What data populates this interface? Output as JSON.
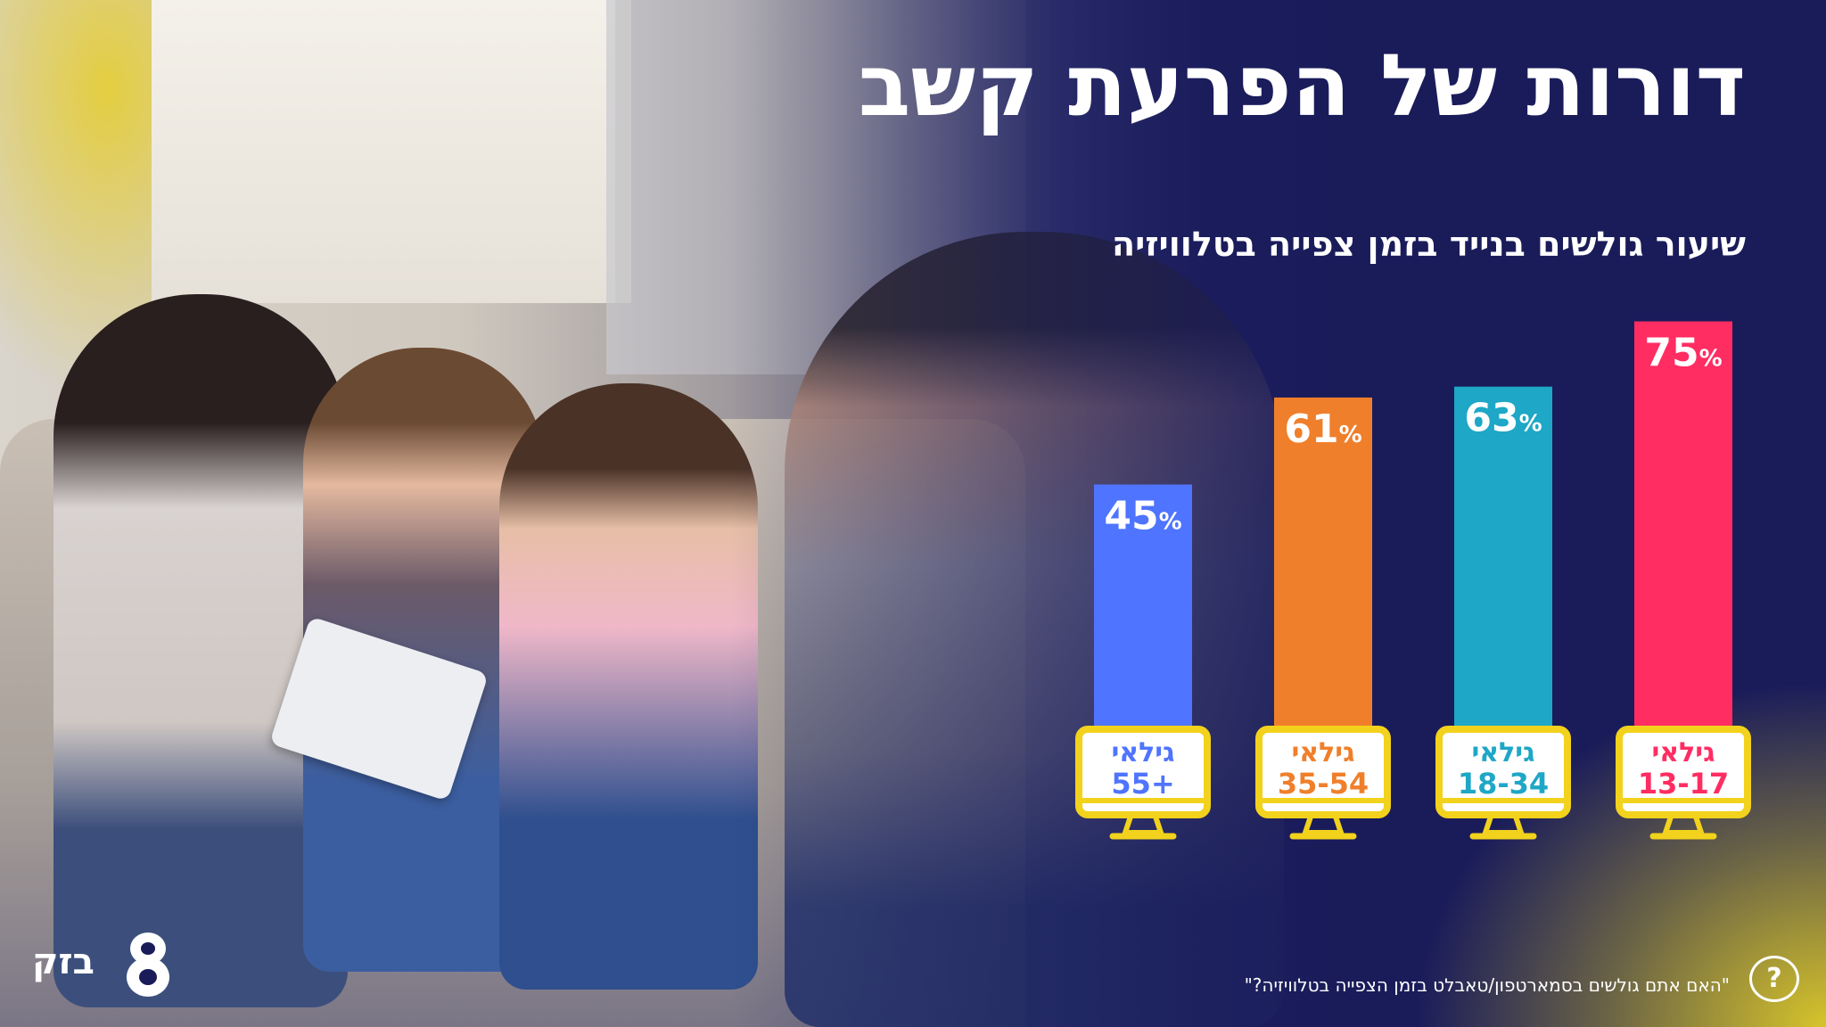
{
  "title": "דורות של הפרעת קשב",
  "footnote": "\"האם אתם גולשים בסמארטפון/טאבלט בזמן הצפייה בטלוויזיה?\"",
  "help_symbol": "?",
  "logo": {
    "text": "בזק",
    "mark": "8"
  },
  "colors": {
    "background": "#1a1c5a",
    "accent_yellow": "#e6c92b",
    "monitor_frame": "#f2d21c"
  },
  "chart_data": {
    "type": "bar",
    "title": "שיעור גולשים בנייד בזמן צפייה בטלוויזיה",
    "value_suffix": "%",
    "category_prefix": "גילאי",
    "categories": [
      "55+",
      "35-54",
      "18-34",
      "13-17"
    ],
    "values": [
      45,
      61,
      63,
      75
    ],
    "bar_colors": [
      "#4f74ff",
      "#f07f2b",
      "#1ea7c6",
      "#ff2d62"
    ],
    "ylim": [
      0,
      100
    ],
    "grid": false,
    "legend": "none"
  }
}
